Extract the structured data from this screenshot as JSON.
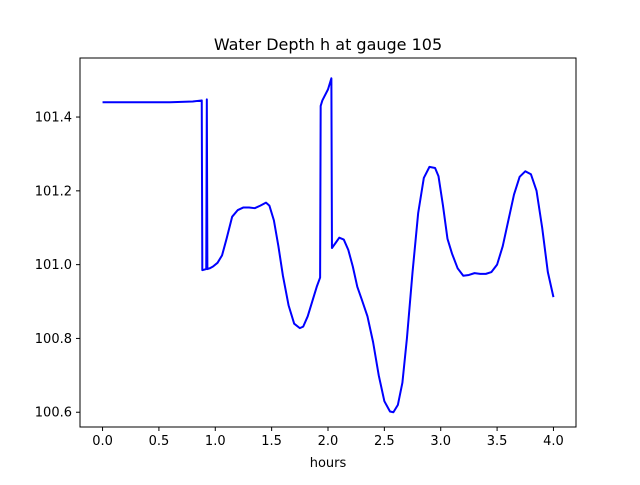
{
  "chart_data": {
    "type": "line",
    "title": "Water Depth h at gauge 105",
    "xlabel": "hours",
    "ylabel": "",
    "xlim": [
      -0.2,
      4.2
    ],
    "ylim": [
      100.56,
      101.56
    ],
    "xticks": [
      0.0,
      0.5,
      1.0,
      1.5,
      2.0,
      2.5,
      3.0,
      3.5,
      4.0
    ],
    "xtick_labels": [
      "0.0",
      "0.5",
      "1.0",
      "1.5",
      "2.0",
      "2.5",
      "3.0",
      "3.5",
      "4.0"
    ],
    "yticks": [
      100.6,
      100.8,
      101.0,
      101.2,
      101.4
    ],
    "ytick_labels": [
      "100.6",
      "100.8",
      "101.0",
      "101.2",
      "101.4"
    ],
    "grid": false,
    "series": [
      {
        "color": "#0000ff",
        "x": [
          0.0,
          0.3,
          0.6,
          0.8,
          0.88,
          0.885,
          0.92,
          0.925,
          0.93,
          0.94,
          0.945,
          0.95,
          0.98,
          1.02,
          1.06,
          1.1,
          1.15,
          1.2,
          1.25,
          1.3,
          1.35,
          1.4,
          1.45,
          1.48,
          1.52,
          1.56,
          1.6,
          1.65,
          1.7,
          1.75,
          1.78,
          1.82,
          1.86,
          1.9,
          1.93,
          1.935,
          1.95,
          2.0,
          2.03,
          2.035,
          2.07,
          2.1,
          2.14,
          2.18,
          2.22,
          2.26,
          2.3,
          2.35,
          2.4,
          2.45,
          2.5,
          2.55,
          2.58,
          2.62,
          2.66,
          2.7,
          2.75,
          2.8,
          2.85,
          2.9,
          2.95,
          2.98,
          3.02,
          3.06,
          3.1,
          3.15,
          3.2,
          3.25,
          3.3,
          3.35,
          3.4,
          3.45,
          3.5,
          3.55,
          3.6,
          3.65,
          3.7,
          3.75,
          3.8,
          3.85,
          3.9,
          3.95,
          4.0
        ],
        "y": [
          101.44,
          101.44,
          101.44,
          101.442,
          101.445,
          100.985,
          100.988,
          101.448,
          100.988,
          100.989,
          100.99,
          100.99,
          100.995,
          101.005,
          101.025,
          101.07,
          101.13,
          101.148,
          101.155,
          101.155,
          101.153,
          101.16,
          101.168,
          101.16,
          101.12,
          101.05,
          100.97,
          100.89,
          100.84,
          100.828,
          100.832,
          100.86,
          100.9,
          100.94,
          100.965,
          101.43,
          101.445,
          101.475,
          101.505,
          101.045,
          101.06,
          101.073,
          101.068,
          101.04,
          100.995,
          100.94,
          100.905,
          100.86,
          100.79,
          100.7,
          100.63,
          100.602,
          100.6,
          100.62,
          100.68,
          100.8,
          100.98,
          101.14,
          101.235,
          101.265,
          101.262,
          101.24,
          101.16,
          101.07,
          101.03,
          100.99,
          100.97,
          100.972,
          100.977,
          100.975,
          100.975,
          100.98,
          101.0,
          101.05,
          101.12,
          101.19,
          101.238,
          101.253,
          101.245,
          101.2,
          101.1,
          100.98,
          100.912
        ]
      }
    ]
  }
}
